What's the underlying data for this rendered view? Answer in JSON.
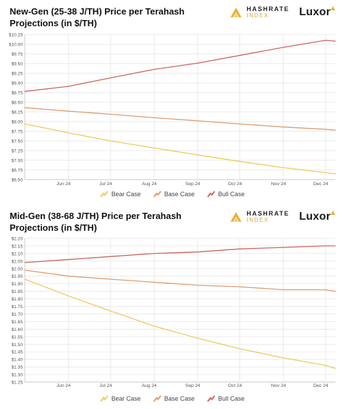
{
  "colors": {
    "bear": "#efc85a",
    "base": "#dc9b6c",
    "bull": "#c9645a",
    "grid": "#e2e2e2",
    "axis": "#bfbfbf",
    "text": "#555555"
  },
  "brand": {
    "hashrate_name": "HASHRATE",
    "hashrate_sub": "INDEX",
    "luxor": "Luxor"
  },
  "icons": {
    "hashrate_logo": "stacked-chevron-icon",
    "luxor_mark": "triangle-icon",
    "legend_marker": "zigzag-line-icon"
  },
  "charts": [
    {
      "title": "New-Gen (25-38 J/TH) Price per Terahash Projections (in $/TH)"
    },
    {
      "title": "Mid-Gen (38-68 J/TH) Price per Terahash Projections (in $/TH)"
    }
  ],
  "legend": {
    "bear": "Bear Case",
    "base": "Base Case",
    "bull": "Bull Case"
  },
  "chart_data": [
    {
      "type": "line",
      "title": "New-Gen (25-38 J/TH) Price per Terahash Projections (in $/TH)",
      "x_labels": [
        "Jun 24",
        "Jul 24",
        "Aug 24",
        "Sep 24",
        "Oct 24",
        "Nov 24",
        "Dec 24"
      ],
      "x_range": [
        "2024-05-24",
        "2024-12-31"
      ],
      "ylim": [
        6.5,
        10.25
      ],
      "y_ticks": [
        "$10.25",
        "$10.00",
        "$9.75",
        "$9.50",
        "$9.25",
        "$9.00",
        "$8.75",
        "$8.50",
        "$8.25",
        "$8.00",
        "$7.75",
        "$7.50",
        "$7.25",
        "$7.00",
        "$6.75",
        "$6.50"
      ],
      "grid": true,
      "legend_position": "bottom",
      "series": [
        {
          "name": "Bear Case",
          "x": [
            "2024-05-24",
            "2024-06-24",
            "2024-07-24",
            "2024-08-24",
            "2024-09-24",
            "2024-10-24",
            "2024-11-24",
            "2024-12-24",
            "2024-12-31"
          ],
          "y": [
            7.94,
            7.71,
            7.5,
            7.32,
            7.14,
            6.97,
            6.81,
            6.68,
            6.65
          ]
        },
        {
          "name": "Base Case",
          "x": [
            "2024-05-24",
            "2024-06-24",
            "2024-07-24",
            "2024-08-24",
            "2024-09-24",
            "2024-10-24",
            "2024-11-24",
            "2024-12-24",
            "2024-12-31"
          ],
          "y": [
            8.36,
            8.27,
            8.19,
            8.1,
            8.02,
            7.94,
            7.86,
            7.8,
            7.78
          ]
        },
        {
          "name": "Bull Case",
          "x": [
            "2024-05-24",
            "2024-06-24",
            "2024-07-24",
            "2024-08-24",
            "2024-09-24",
            "2024-10-24",
            "2024-11-24",
            "2024-12-24",
            "2024-12-31"
          ],
          "y": [
            8.78,
            8.91,
            9.13,
            9.35,
            9.51,
            9.71,
            9.92,
            10.1,
            10.08
          ]
        }
      ]
    },
    {
      "type": "line",
      "title": "Mid-Gen (38-68 J/TH) Price per Terahash Projections (in $/TH)",
      "x_labels": [
        "Jun 24",
        "Jul 24",
        "Aug 24",
        "Sep 24",
        "Oct 24",
        "Nov 24",
        "Dec 24"
      ],
      "x_range": [
        "2024-05-24",
        "2024-12-31"
      ],
      "ylim": [
        1.25,
        2.2
      ],
      "y_ticks": [
        "$2.20",
        "$2.15",
        "$2.10",
        "$2.05",
        "$2.00",
        "$1.95",
        "$1.90",
        "$1.85",
        "$1.80",
        "$1.75",
        "$1.70",
        "$1.65",
        "$1.60",
        "$1.55",
        "$1.50",
        "$1.45",
        "$1.40",
        "$1.35",
        "$1.30",
        "$1.25"
      ],
      "grid": true,
      "legend_position": "bottom",
      "series": [
        {
          "name": "Bear Case",
          "x": [
            "2024-05-24",
            "2024-06-24",
            "2024-07-24",
            "2024-08-24",
            "2024-09-24",
            "2024-10-24",
            "2024-11-24",
            "2024-12-24",
            "2024-12-31"
          ],
          "y": [
            1.93,
            1.82,
            1.72,
            1.62,
            1.54,
            1.47,
            1.41,
            1.36,
            1.34
          ]
        },
        {
          "name": "Base Case",
          "x": [
            "2024-05-24",
            "2024-06-24",
            "2024-07-24",
            "2024-08-24",
            "2024-09-24",
            "2024-10-24",
            "2024-11-24",
            "2024-12-24",
            "2024-12-31"
          ],
          "y": [
            1.99,
            1.95,
            1.93,
            1.91,
            1.89,
            1.88,
            1.86,
            1.86,
            1.85
          ]
        },
        {
          "name": "Bull Case",
          "x": [
            "2024-05-24",
            "2024-06-24",
            "2024-07-24",
            "2024-08-24",
            "2024-09-24",
            "2024-10-24",
            "2024-11-24",
            "2024-12-24",
            "2024-12-31"
          ],
          "y": [
            2.04,
            2.06,
            2.08,
            2.1,
            2.11,
            2.13,
            2.14,
            2.15,
            2.15
          ]
        }
      ]
    }
  ]
}
